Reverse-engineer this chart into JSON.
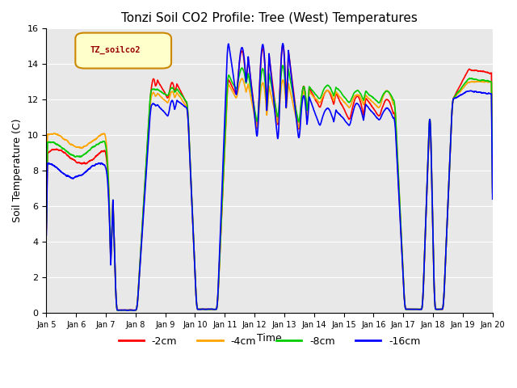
{
  "title": "Tonzi Soil CO2 Profile: Tree (West) Temperatures",
  "xlabel": "Time",
  "ylabel": "Soil Temperature (C)",
  "ylim": [
    0,
    16
  ],
  "xlim": [
    0,
    15
  ],
  "legend_label": "TZ_soilco2",
  "series_labels": [
    "-2cm",
    "-4cm",
    "-8cm",
    "-16cm"
  ],
  "series_colors": [
    "#ff0000",
    "#ffa500",
    "#00cc00",
    "#0000ff"
  ],
  "xtick_labels": [
    "Jan 5",
    "Jan 6",
    "Jan 7",
    "Jan 8",
    "Jan 9",
    "Jan 10",
    "Jan 11",
    "Jan 12",
    "Jan 13",
    "Jan 14",
    "Jan 15",
    "Jan 16",
    "Jan 17",
    "Jan 18",
    "Jan 19",
    "Jan 20"
  ],
  "ytick_labels": [
    "0",
    "2",
    "4",
    "6",
    "8",
    "10",
    "12",
    "14",
    "16"
  ],
  "background_color": "#e8e8e8",
  "title_fontsize": 11,
  "axis_fontsize": 9,
  "tick_fontsize": 8
}
